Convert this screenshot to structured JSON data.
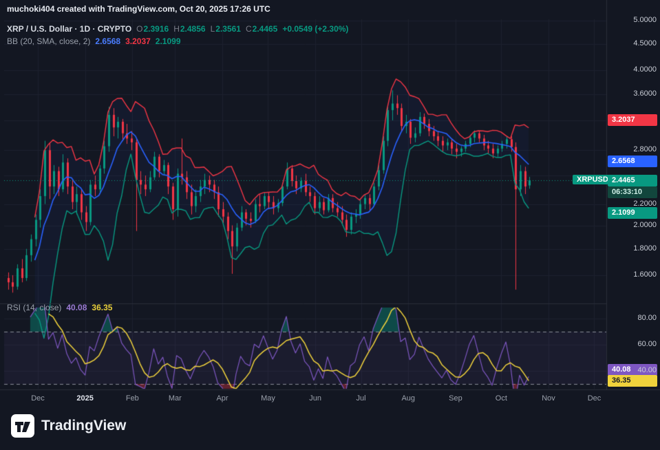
{
  "attribution": "muchoki404 created with TradingView.com, Oct 20, 2025 17:26 UTC",
  "legend": {
    "title": "XRP / U.S. Dollar · 1D · CRYPTO",
    "o_label": "O",
    "o_value": "2.3916",
    "h_label": "H",
    "h_value": "2.4856",
    "l_label": "L",
    "l_value": "2.3561",
    "c_label": "C",
    "c_value": "2.4465",
    "change": "+0.0549 (+2.30%)"
  },
  "bb_legend": {
    "label": "BB (20, SMA, close, 2)",
    "basis_value": "2.6568",
    "upper_value": "3.2037",
    "lower_value": "2.1099"
  },
  "rsi_legend": {
    "label": "RSI (14, close)",
    "rsi_value": "40.08",
    "ma_value": "36.35"
  },
  "price_axis": {
    "tick_labels": [
      "5.0000",
      "4.5000",
      "4.0000",
      "3.6000",
      "2.8000",
      "2.2000",
      "2.0000",
      "1.8000",
      "1.6000"
    ],
    "tick_values": [
      5.0,
      4.5,
      4.0,
      3.6,
      2.8,
      2.2,
      2.0,
      1.8,
      1.6
    ],
    "bb_upper_badge": "3.2037",
    "bb_basis_badge": "2.6568",
    "price_badge": "2.4465",
    "countdown": "06:33:10",
    "bb_lower_badge": "2.1099",
    "symbol_tag": "XRPUSD"
  },
  "rsi_axis": {
    "tick_labels": [
      "80.00",
      "60.00",
      "40.00"
    ],
    "tick_values": [
      80,
      60,
      40
    ],
    "rsi_badge": "40.08",
    "ma_badge": "36.35"
  },
  "time_axis": {
    "labels": [
      "Dec",
      "2025",
      "Feb",
      "Mar",
      "Apr",
      "May",
      "Jun",
      "Jul",
      "Aug",
      "Sep",
      "Oct",
      "Nov",
      "Dec"
    ],
    "day_offsets": [
      0,
      31,
      62,
      90,
      121,
      151,
      182,
      212,
      243,
      274,
      304,
      335,
      365
    ]
  },
  "logo": {
    "text": "TradingView"
  },
  "colors": {
    "bg": "#131722",
    "grid": "#1d212e",
    "border": "#2a2e39",
    "up": "#089981",
    "down": "#f23645",
    "bb_basis": "#2962ff",
    "bb_upper": "#f23645",
    "bb_lower": "#089981",
    "bb_fill": "rgba(41,98,255,0.05)",
    "rsi": "#7e57c2",
    "rsi_ma": "#f0d23c",
    "rsi_band_fill": "rgba(126,87,194,0.08)",
    "rsi_ob_fill": "rgba(8,153,129,0.40)",
    "rsi_os_fill": "rgba(242,54,69,0.35)",
    "dashed": "#8a8e99"
  },
  "chart_data": [
    {
      "type": "candlestick",
      "symbol": "XRPUSD",
      "interval": "1D",
      "y_scale": "log",
      "title": "XRP / U.S. Dollar 1D with Bollinger Bands (20, SMA, close, 2)",
      "ohlc_last": {
        "o": 2.3916,
        "h": 2.4856,
        "l": 2.3561,
        "c": 2.4465,
        "change": 0.0549,
        "change_pct": 2.3
      },
      "last_price": 2.4465,
      "y_grid": [
        5.0,
        4.5,
        4.0,
        3.6,
        3.2,
        2.8,
        2.5,
        2.2,
        2.0,
        1.8,
        1.6
      ],
      "start_day": -20,
      "step_days": 3,
      "candles": [
        [
          1.58,
          1.62,
          1.5,
          1.55
        ],
        [
          1.55,
          1.6,
          1.48,
          1.52
        ],
        [
          1.52,
          1.68,
          1.5,
          1.65
        ],
        [
          1.65,
          1.72,
          1.55,
          1.58
        ],
        [
          1.58,
          1.8,
          1.56,
          1.75
        ],
        [
          1.75,
          1.92,
          1.7,
          1.88
        ],
        [
          1.88,
          2.1,
          1.82,
          2.05
        ],
        [
          2.05,
          2.35,
          1.98,
          2.28
        ],
        [
          2.28,
          2.92,
          2.2,
          2.8
        ],
        [
          2.8,
          2.9,
          2.25,
          2.38
        ],
        [
          2.38,
          2.62,
          2.3,
          2.55
        ],
        [
          2.55,
          2.6,
          2.28,
          2.35
        ],
        [
          2.35,
          2.75,
          2.32,
          2.65
        ],
        [
          2.65,
          2.7,
          2.3,
          2.38
        ],
        [
          2.38,
          2.45,
          2.15,
          2.22
        ],
        [
          2.22,
          2.38,
          2.1,
          2.3
        ],
        [
          2.3,
          2.35,
          2.05,
          2.12
        ],
        [
          2.12,
          2.18,
          1.95,
          2.03
        ],
        [
          2.03,
          2.45,
          2.0,
          2.4
        ],
        [
          2.4,
          2.5,
          2.28,
          2.35
        ],
        [
          2.35,
          2.62,
          2.3,
          2.58
        ],
        [
          2.58,
          2.92,
          2.52,
          2.85
        ],
        [
          2.85,
          3.4,
          2.78,
          3.28
        ],
        [
          3.28,
          3.38,
          2.98,
          3.1
        ],
        [
          3.1,
          3.25,
          2.95,
          3.18
        ],
        [
          3.18,
          3.22,
          2.92,
          3.02
        ],
        [
          3.02,
          3.15,
          2.88,
          2.95
        ],
        [
          2.95,
          3.05,
          2.8,
          2.9
        ],
        [
          2.9,
          2.95,
          1.95,
          2.45
        ],
        [
          2.45,
          2.55,
          2.3,
          2.4
        ],
        [
          2.4,
          2.5,
          2.28,
          2.35
        ],
        [
          2.35,
          2.55,
          2.32,
          2.48
        ],
        [
          2.48,
          2.78,
          2.45,
          2.72
        ],
        [
          2.72,
          2.75,
          2.48,
          2.55
        ],
        [
          2.55,
          2.68,
          2.5,
          2.62
        ],
        [
          2.62,
          2.65,
          2.3,
          2.38
        ],
        [
          2.38,
          2.42,
          2.05,
          2.15
        ],
        [
          2.15,
          2.58,
          2.08,
          2.52
        ],
        [
          2.52,
          2.95,
          2.4,
          2.48
        ],
        [
          2.48,
          2.55,
          2.25,
          2.32
        ],
        [
          2.32,
          2.4,
          2.1,
          2.18
        ],
        [
          2.18,
          2.35,
          2.12,
          2.28
        ],
        [
          2.28,
          2.45,
          2.22,
          2.38
        ],
        [
          2.38,
          2.52,
          2.3,
          2.45
        ],
        [
          2.45,
          2.5,
          2.32,
          2.4
        ],
        [
          2.4,
          2.45,
          2.25,
          2.32
        ],
        [
          2.32,
          2.38,
          2.08,
          2.15
        ],
        [
          2.15,
          2.22,
          2.02,
          2.08
        ],
        [
          2.08,
          2.12,
          1.88,
          1.95
        ],
        [
          1.95,
          2.0,
          1.61,
          1.82
        ],
        [
          1.82,
          2.02,
          1.78,
          1.98
        ],
        [
          1.98,
          2.18,
          1.95,
          2.12
        ],
        [
          2.12,
          2.15,
          2.0,
          2.06
        ],
        [
          2.06,
          2.12,
          1.98,
          2.04
        ],
        [
          2.04,
          2.25,
          2.02,
          2.2
        ],
        [
          2.2,
          2.3,
          2.12,
          2.18
        ],
        [
          2.18,
          2.32,
          2.15,
          2.28
        ],
        [
          2.28,
          2.32,
          2.15,
          2.22
        ],
        [
          2.22,
          2.28,
          2.1,
          2.16
        ],
        [
          2.16,
          2.25,
          2.12,
          2.21
        ],
        [
          2.21,
          2.42,
          2.18,
          2.38
        ],
        [
          2.38,
          2.65,
          2.35,
          2.58
        ],
        [
          2.58,
          2.62,
          2.38,
          2.44
        ],
        [
          2.44,
          2.5,
          2.3,
          2.36
        ],
        [
          2.36,
          2.48,
          2.32,
          2.44
        ],
        [
          2.44,
          2.52,
          2.28,
          2.32
        ],
        [
          2.32,
          2.38,
          2.22,
          2.28
        ],
        [
          2.28,
          2.32,
          2.1,
          2.16
        ],
        [
          2.16,
          2.28,
          2.12,
          2.22
        ],
        [
          2.22,
          2.26,
          2.1,
          2.14
        ],
        [
          2.14,
          2.3,
          2.12,
          2.26
        ],
        [
          2.26,
          2.3,
          2.12,
          2.16
        ],
        [
          2.16,
          2.22,
          2.08,
          2.12
        ],
        [
          2.12,
          2.18,
          2.0,
          2.05
        ],
        [
          2.05,
          2.1,
          1.9,
          1.96
        ],
        [
          1.96,
          2.12,
          1.92,
          2.08
        ],
        [
          2.08,
          2.15,
          2.02,
          2.1
        ],
        [
          2.1,
          2.25,
          2.06,
          2.2
        ],
        [
          2.2,
          2.3,
          2.15,
          2.26
        ],
        [
          2.26,
          2.3,
          2.14,
          2.2
        ],
        [
          2.2,
          2.42,
          2.18,
          2.38
        ],
        [
          2.38,
          2.62,
          2.34,
          2.56
        ],
        [
          2.56,
          2.98,
          2.52,
          2.92
        ],
        [
          2.92,
          3.42,
          2.85,
          3.35
        ],
        [
          3.35,
          3.66,
          3.2,
          3.45
        ],
        [
          3.45,
          3.58,
          3.28,
          3.38
        ],
        [
          3.38,
          3.45,
          3.05,
          3.12
        ],
        [
          3.12,
          3.28,
          3.02,
          3.18
        ],
        [
          3.18,
          3.22,
          2.88,
          2.96
        ],
        [
          2.96,
          3.1,
          2.9,
          3.02
        ],
        [
          3.02,
          3.32,
          2.98,
          3.25
        ],
        [
          3.25,
          3.3,
          3.08,
          3.15
        ],
        [
          3.15,
          3.22,
          2.98,
          3.05
        ],
        [
          3.05,
          3.12,
          2.92,
          2.98
        ],
        [
          2.98,
          3.05,
          2.85,
          2.92
        ],
        [
          2.92,
          2.98,
          2.78,
          2.86
        ],
        [
          2.86,
          2.95,
          2.8,
          2.9
        ],
        [
          2.9,
          2.95,
          2.75,
          2.82
        ],
        [
          2.82,
          2.88,
          2.7,
          2.78
        ],
        [
          2.78,
          2.85,
          2.72,
          2.82
        ],
        [
          2.82,
          2.92,
          2.78,
          2.88
        ],
        [
          2.88,
          3.0,
          2.84,
          2.96
        ],
        [
          2.96,
          3.06,
          2.9,
          3.02
        ],
        [
          3.02,
          3.05,
          2.9,
          2.95
        ],
        [
          2.95,
          3.0,
          2.8,
          2.86
        ],
        [
          2.86,
          2.92,
          2.76,
          2.82
        ],
        [
          2.82,
          2.88,
          2.7,
          2.76
        ],
        [
          2.76,
          2.86,
          2.72,
          2.82
        ],
        [
          2.82,
          2.92,
          2.78,
          2.88
        ],
        [
          2.88,
          2.98,
          2.82,
          2.94
        ],
        [
          2.94,
          2.98,
          2.78,
          2.84
        ],
        [
          2.84,
          2.9,
          1.5,
          2.35
        ],
        [
          2.35,
          2.62,
          2.28,
          2.55
        ],
        [
          2.55,
          2.6,
          2.3,
          2.38
        ],
        [
          2.3916,
          2.4856,
          2.3561,
          2.4465
        ]
      ],
      "bollinger": {
        "period": 20,
        "stdev": 2,
        "source": "close",
        "last": {
          "upper": 3.2037,
          "basis": 2.6568,
          "lower": 2.1099
        },
        "render_period_bars": 7
      }
    },
    {
      "type": "line",
      "name": "RSI (14, close)",
      "period": 14,
      "source": "close",
      "y_ticks": [
        80,
        60,
        40
      ],
      "overbought": 70,
      "oversold": 30,
      "last_values": {
        "rsi": 40.08,
        "rsi_ma": 36.35
      },
      "series_note": "RSI and its MA are computed from the candle closes in chart_data[0]",
      "render_period_bars": 5,
      "ma_period_bars": 5
    }
  ]
}
